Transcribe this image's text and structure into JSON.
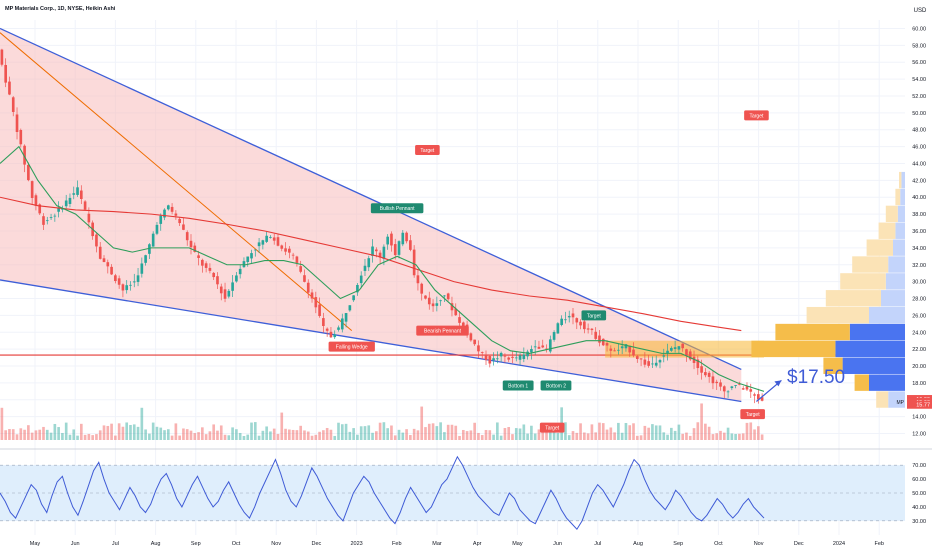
{
  "header": {
    "title": "MP Materials Corp., 1D, NYSE, Heikin Ashi",
    "currency": "USD"
  },
  "colors": {
    "up": "#26a69a",
    "down": "#ef5350",
    "channel_fill": "#f8bcbc",
    "channel_line": "#3e5fd8",
    "ma_green": "#2e9e5b",
    "ma_red": "#e53935",
    "diag_orange": "#ef6c00",
    "rsi_line": "#3f5bd6",
    "rsi_band": "#dfeefc",
    "vp_blue": "#4a74f0",
    "vp_orange": "#f5bd4a",
    "vp_light_blue": "#c3d4fb",
    "vp_light_orange": "#fbe3b6",
    "value_zone": "#f7b733"
  },
  "chart_data": {
    "type": "candlestick",
    "price_axis": {
      "ticks": [
        "60.00",
        "58.00",
        "56.00",
        "54.00",
        "52.00",
        "50.00",
        "48.00",
        "46.00",
        "44.00",
        "42.00",
        "40.00",
        "38.00",
        "36.00",
        "34.00",
        "32.00",
        "30.00",
        "28.00",
        "26.00",
        "24.00",
        "22.00",
        "20.00",
        "18.00",
        "16.00",
        "14.00",
        "12.00"
      ],
      "range": [
        11,
        61
      ]
    },
    "time_axis": {
      "ticks": [
        "May",
        "Jun",
        "Jul",
        "Aug",
        "Sep",
        "Oct",
        "Nov",
        "Dec",
        "2023",
        "Feb",
        "Mar",
        "Apr",
        "May",
        "Jun",
        "Jul",
        "Aug",
        "Sep",
        "Oct",
        "Nov",
        "Dec",
        "2024",
        "Feb"
      ]
    },
    "price_tags": [
      {
        "value": "16.09",
        "color": "#ef5350"
      },
      {
        "value": "15.93",
        "color": "#ef5350",
        "prefix": "MP"
      },
      {
        "value": "15.77",
        "color": "#ef5350"
      }
    ],
    "price_path": [
      [
        0,
        57.5
      ],
      [
        3,
        52
      ],
      [
        6,
        46
      ],
      [
        9,
        40
      ],
      [
        12,
        37
      ],
      [
        15,
        38
      ],
      [
        18,
        39.5
      ],
      [
        21,
        41
      ],
      [
        24,
        37
      ],
      [
        27,
        33
      ],
      [
        30,
        31
      ],
      [
        33,
        29
      ],
      [
        36,
        30
      ],
      [
        39,
        33
      ],
      [
        42,
        37
      ],
      [
        45,
        39
      ],
      [
        48,
        37
      ],
      [
        51,
        34
      ],
      [
        54,
        32
      ],
      [
        57,
        30.5
      ],
      [
        60,
        28
      ],
      [
        63,
        31
      ],
      [
        66,
        33
      ],
      [
        69,
        34.5
      ],
      [
        72,
        35.5
      ],
      [
        75,
        34
      ],
      [
        78,
        33
      ],
      [
        81,
        30
      ],
      [
        84,
        27
      ],
      [
        86,
        24.5
      ],
      [
        88,
        23.5
      ],
      [
        90,
        24.5
      ],
      [
        93,
        27.5
      ],
      [
        96,
        31
      ],
      [
        99,
        34
      ],
      [
        101,
        33
      ],
      [
        103,
        35.5
      ],
      [
        105,
        33
      ],
      [
        107,
        36
      ],
      [
        109,
        34
      ],
      [
        110,
        31
      ],
      [
        112,
        28.5
      ],
      [
        115,
        27
      ],
      [
        118,
        28.5
      ],
      [
        121,
        26
      ],
      [
        124,
        24
      ],
      [
        127,
        21.8
      ],
      [
        130,
        20.5
      ],
      [
        133,
        21.3
      ],
      [
        136,
        20.8
      ],
      [
        139,
        21.2
      ],
      [
        142,
        22.5
      ],
      [
        145,
        22
      ],
      [
        148,
        25
      ],
      [
        151,
        26
      ],
      [
        154,
        25
      ],
      [
        157,
        24
      ],
      [
        160,
        22.5
      ],
      [
        163,
        21.7
      ],
      [
        166,
        22.3
      ],
      [
        169,
        21
      ],
      [
        172,
        20
      ],
      [
        175,
        21
      ],
      [
        178,
        22
      ],
      [
        180,
        22.4
      ],
      [
        183,
        21
      ],
      [
        186,
        19.5
      ],
      [
        189,
        18.2
      ],
      [
        192,
        17
      ],
      [
        195,
        17.8
      ],
      [
        198,
        17.2
      ],
      [
        200,
        16.4
      ],
      [
        202,
        15.9
      ]
    ],
    "ma_green": [
      [
        0,
        44
      ],
      [
        5,
        46
      ],
      [
        10,
        42
      ],
      [
        15,
        39
      ],
      [
        20,
        38
      ],
      [
        25,
        36
      ],
      [
        30,
        34
      ],
      [
        35,
        33.5
      ],
      [
        40,
        34
      ],
      [
        45,
        34
      ],
      [
        50,
        34
      ],
      [
        55,
        33
      ],
      [
        60,
        32
      ],
      [
        65,
        32
      ],
      [
        70,
        32.5
      ],
      [
        75,
        32.5
      ],
      [
        80,
        32
      ],
      [
        85,
        30
      ],
      [
        90,
        28
      ],
      [
        95,
        29
      ],
      [
        100,
        32
      ],
      [
        105,
        33
      ],
      [
        110,
        32
      ],
      [
        115,
        29
      ],
      [
        120,
        27
      ],
      [
        125,
        25
      ],
      [
        130,
        23
      ],
      [
        135,
        21.8
      ],
      [
        140,
        21.5
      ],
      [
        145,
        22
      ],
      [
        150,
        22.5
      ],
      [
        155,
        23
      ],
      [
        160,
        23
      ],
      [
        165,
        22.5
      ],
      [
        170,
        22
      ],
      [
        175,
        21.5
      ],
      [
        180,
        21.5
      ],
      [
        185,
        20.5
      ],
      [
        190,
        19
      ],
      [
        195,
        18
      ],
      [
        202,
        17
      ]
    ],
    "ma_red": [
      [
        0,
        40
      ],
      [
        10,
        39
      ],
      [
        20,
        38.5
      ],
      [
        30,
        38.3
      ],
      [
        40,
        38
      ],
      [
        50,
        37.5
      ],
      [
        60,
        36.8
      ],
      [
        70,
        36
      ],
      [
        80,
        35
      ],
      [
        90,
        34
      ],
      [
        100,
        33
      ],
      [
        110,
        31.5
      ],
      [
        120,
        30
      ],
      [
        130,
        29
      ],
      [
        140,
        28.3
      ],
      [
        150,
        27.8
      ],
      [
        160,
        27
      ],
      [
        170,
        26.2
      ],
      [
        180,
        25.3
      ],
      [
        190,
        24.6
      ],
      [
        196,
        24.2
      ]
    ],
    "channel": {
      "upper": [
        [
          0,
          60
        ],
        [
          196,
          19.6
        ]
      ],
      "lower": [
        [
          0,
          30.2
        ],
        [
          196,
          15.8
        ]
      ]
    },
    "falling_diagonal": [
      [
        0,
        59.5
      ],
      [
        93,
        24.2
      ]
    ],
    "horizontal_level": 21.3,
    "patterns": [
      {
        "label": "Falling Wedge",
        "x": 93,
        "y": 22.3,
        "color": "#ef5350"
      },
      {
        "label": "Bullish Pennant",
        "x": 105,
        "y": 38.7,
        "color": "#1f8a70"
      },
      {
        "label": "Bearish Pennant",
        "x": 117,
        "y": 24.2,
        "color": "#ef5350"
      },
      {
        "label": "Bottom 1",
        "x": 137,
        "y": 17.7,
        "color": "#1f8a70"
      },
      {
        "label": "Bottom 2",
        "x": 147,
        "y": 17.7,
        "color": "#1f8a70"
      },
      {
        "label": "Target",
        "x": 113,
        "y": 45.6,
        "color": "#ef5350"
      },
      {
        "label": "Target",
        "x": 157,
        "y": 26,
        "color": "#1f8a70"
      },
      {
        "label": "Target",
        "x": 146,
        "y": 12.7,
        "color": "#ef5350"
      },
      {
        "label": "Target",
        "x": 200,
        "y": 49.7,
        "color": "#ef5350"
      },
      {
        "label": "Target",
        "x": 199,
        "y": 14.3,
        "color": "#ef5350"
      }
    ],
    "forecast_label": "$17.50",
    "volume_profile": [
      {
        "price": 42,
        "blue": 3,
        "orange": 2
      },
      {
        "price": 40,
        "blue": 4,
        "orange": 4
      },
      {
        "price": 38,
        "blue": 6,
        "orange": 10
      },
      {
        "price": 36,
        "blue": 8,
        "orange": 14
      },
      {
        "price": 34,
        "blue": 10,
        "orange": 22
      },
      {
        "price": 32,
        "blue": 14,
        "orange": 30
      },
      {
        "price": 30,
        "blue": 16,
        "orange": 38
      },
      {
        "price": 28,
        "blue": 20,
        "orange": 46
      },
      {
        "price": 26,
        "blue": 30,
        "orange": 52
      },
      {
        "price": 24,
        "blue": 46,
        "orange": 62
      },
      {
        "price": 22,
        "blue": 58,
        "orange": 70
      },
      {
        "price": 20,
        "blue": 52,
        "orange": 16
      },
      {
        "price": 18,
        "blue": 30,
        "orange": 12
      },
      {
        "price": 16,
        "blue": 14,
        "orange": 10
      }
    ],
    "rsi": {
      "ticks": [
        "70.00",
        "60.00",
        "50.00",
        "40.00",
        "30.00"
      ],
      "range": [
        22,
        78
      ],
      "band": [
        30,
        70
      ],
      "values": [
        50,
        44,
        36,
        32,
        40,
        48,
        56,
        52,
        42,
        36,
        48,
        58,
        62,
        50,
        40,
        34,
        44,
        55,
        66,
        72,
        60,
        50,
        44,
        38,
        46,
        54,
        48,
        40,
        36,
        42,
        52,
        60,
        64,
        56,
        46,
        40,
        48,
        56,
        62,
        54,
        46,
        40,
        44,
        52,
        58,
        50,
        42,
        36,
        32,
        40,
        50,
        58,
        66,
        74,
        64,
        52,
        44,
        40,
        48,
        58,
        68,
        62,
        54,
        46,
        40,
        34,
        30,
        40,
        50,
        56,
        62,
        58,
        50,
        44,
        38,
        32,
        28,
        36,
        46,
        54,
        48,
        42,
        36,
        40,
        48,
        56,
        60,
        68,
        76,
        70,
        62,
        54,
        48,
        44,
        40,
        36,
        34,
        42,
        50,
        46,
        38,
        34,
        30,
        28,
        36,
        44,
        52,
        46,
        38,
        32,
        28,
        24,
        30,
        40,
        50,
        56,
        52,
        46,
        40,
        48,
        56,
        66,
        74,
        70,
        60,
        52,
        46,
        42,
        38,
        44,
        52,
        48,
        42,
        36,
        32,
        30,
        34,
        40,
        46,
        42,
        36,
        32,
        36,
        42,
        46,
        40,
        36,
        32
      ]
    }
  }
}
